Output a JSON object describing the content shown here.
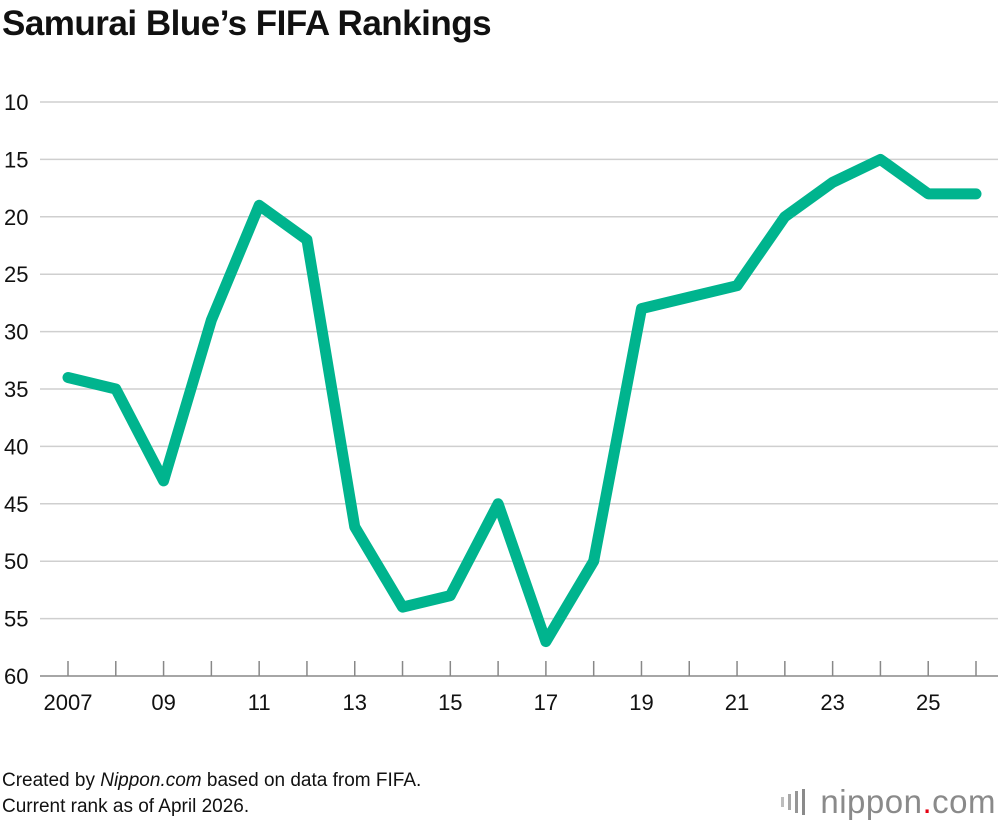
{
  "chart_data": {
    "type": "line",
    "title": "Samurai Blue’s FIFA Rankings",
    "xlabel": "",
    "ylabel": "",
    "x": [
      2007,
      2008,
      2009,
      2010,
      2011,
      2012,
      2013,
      2014,
      2015,
      2016,
      2017,
      2018,
      2019,
      2020,
      2021,
      2022,
      2023,
      2024,
      2025,
      2026
    ],
    "x_tick_values": [
      2007,
      2009,
      2011,
      2013,
      2015,
      2017,
      2019,
      2021,
      2023,
      2025
    ],
    "x_tick_labels": [
      "2007",
      "09",
      "11",
      "13",
      "15",
      "17",
      "19",
      "21",
      "23",
      "25"
    ],
    "series": [
      {
        "values": [
          34,
          35,
          43,
          29,
          19,
          22,
          47,
          54,
          53,
          45,
          57,
          50,
          28,
          27,
          26,
          20,
          17,
          15,
          18,
          18
        ]
      }
    ],
    "ylim": [
      10,
      60
    ],
    "y_inverted": true,
    "y_ticks": [
      10,
      15,
      20,
      25,
      30,
      35,
      40,
      45,
      50,
      55,
      60
    ],
    "grid": true,
    "line_color": "#00b48e"
  },
  "footer": {
    "line1_prefix": "Created by ",
    "line1_source": "Nippon.com",
    "line1_suffix": " based on data from FIFA.",
    "line2": "Current rank as of April 2026."
  },
  "logo": {
    "word": "nippon",
    "dot": ".",
    "tld": "com",
    "accent_color": "#e60012",
    "text_color": "#8a8a8a"
  }
}
